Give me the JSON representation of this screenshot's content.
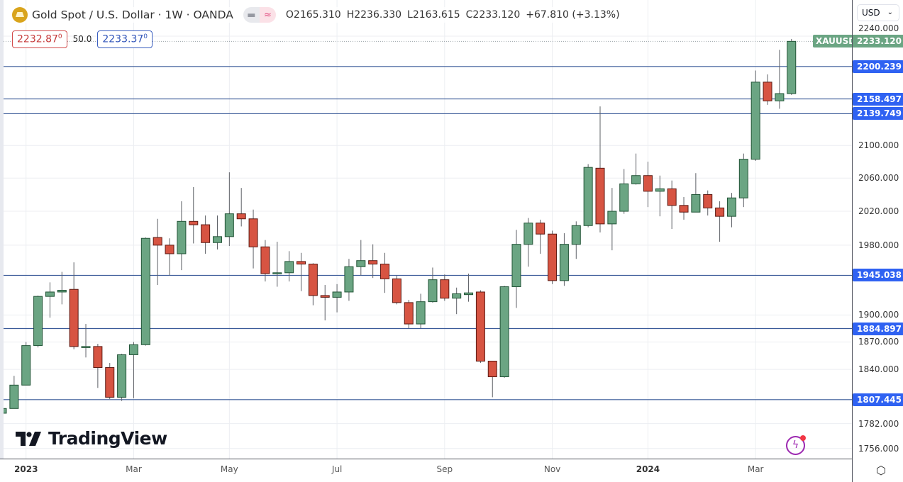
{
  "header": {
    "title": "Gold Spot / U.S. Dollar · 1W · OANDA",
    "ohlc": {
      "open": "O2165.310",
      "high": "H2236.330",
      "low": "L2163.615",
      "close": "C2233.120",
      "change": "+67.810 (+3.13%)"
    },
    "bid": "2232.87",
    "bid_sup": "0",
    "spread": "50.0",
    "ask": "2233.37",
    "ask_sup": "0"
  },
  "currency_select": "USD",
  "symbol_tag": "XAUUSD",
  "last_price_label": "2233.120",
  "branding": "TradingView",
  "colors": {
    "up": "#6ba583",
    "down": "#d75442",
    "level": "#2f62f2",
    "level_line": "#3a5a98"
  },
  "chart_data": {
    "type": "candlestick",
    "title": "Gold Spot / U.S. Dollar · 1W · OANDA",
    "y_scale": "log",
    "ylim": [
      1740,
      2250
    ],
    "last_price": 2233.12,
    "y_ticks": [
      "2240.000",
      "2100.000",
      "2060.000",
      "2020.000",
      "1980.000",
      "1900.000",
      "1870.000",
      "1840.000",
      "1782.000",
      "1756.000"
    ],
    "levels": [
      "2200.239",
      "2158.497",
      "2139.749",
      "1945.038",
      "1884.897",
      "1807.445"
    ],
    "x_labels": [
      {
        "label": "2023",
        "index": 2,
        "year": true
      },
      {
        "label": "Mar",
        "index": 11
      },
      {
        "label": "May",
        "index": 19
      },
      {
        "label": "Jul",
        "index": 28
      },
      {
        "label": "Sep",
        "index": 37
      },
      {
        "label": "Nov",
        "index": 46
      },
      {
        "label": "2024",
        "index": 54,
        "year": true
      },
      {
        "label": "Mar",
        "index": 63
      }
    ],
    "candles_ohlc": [
      [
        1793,
        1826,
        1784,
        1798
      ],
      [
        1798,
        1833,
        1798,
        1823
      ],
      [
        1823,
        1870,
        1823,
        1866
      ],
      [
        1866,
        1922,
        1864,
        1921
      ],
      [
        1921,
        1937,
        1897,
        1926
      ],
      [
        1926,
        1949,
        1912,
        1928
      ],
      [
        1929,
        1960,
        1862,
        1865
      ],
      [
        1865,
        1890,
        1853,
        1865
      ],
      [
        1865,
        1868,
        1820,
        1842
      ],
      [
        1842,
        1847,
        1808,
        1810
      ],
      [
        1810,
        1857,
        1806,
        1856
      ],
      [
        1856,
        1870,
        1809,
        1867
      ],
      [
        1867,
        1989,
        1866,
        1988
      ],
      [
        1989,
        2011,
        1934,
        1980
      ],
      [
        1980,
        1988,
        1945,
        1970
      ],
      [
        1970,
        2032,
        1951,
        2008
      ],
      [
        2008,
        2049,
        1982,
        2004
      ],
      [
        2004,
        2015,
        1970,
        1983
      ],
      [
        1983,
        2015,
        1975,
        1990
      ],
      [
        1990,
        2067,
        1979,
        2017
      ],
      [
        2017,
        2048,
        2002,
        2011
      ],
      [
        2011,
        2022,
        1953,
        1978
      ],
      [
        1978,
        1986,
        1938,
        1947
      ],
      [
        1947,
        1984,
        1932,
        1948
      ],
      [
        1948,
        1973,
        1938,
        1961
      ],
      [
        1961,
        1971,
        1927,
        1958
      ],
      [
        1958,
        1959,
        1911,
        1922
      ],
      [
        1922,
        1934,
        1894,
        1920
      ],
      [
        1920,
        1935,
        1903,
        1926
      ],
      [
        1926,
        1964,
        1916,
        1955
      ],
      [
        1955,
        1986,
        1945,
        1962
      ],
      [
        1962,
        1981,
        1942,
        1958
      ],
      [
        1958,
        1971,
        1925,
        1941
      ],
      [
        1941,
        1945,
        1912,
        1914
      ],
      [
        1914,
        1917,
        1885,
        1890
      ],
      [
        1890,
        1924,
        1885,
        1915
      ],
      [
        1915,
        1954,
        1914,
        1940
      ],
      [
        1940,
        1946,
        1916,
        1919
      ],
      [
        1919,
        1931,
        1901,
        1924
      ],
      [
        1923,
        1947,
        1915,
        1925
      ],
      [
        1926,
        1928,
        1847,
        1849
      ],
      [
        1849,
        1849,
        1810,
        1832
      ],
      [
        1832,
        1933,
        1831,
        1932
      ],
      [
        1932,
        1998,
        1908,
        1981
      ],
      [
        1981,
        2012,
        1955,
        2006
      ],
      [
        2006,
        2010,
        1970,
        1993
      ],
      [
        1993,
        1997,
        1935,
        1939
      ],
      [
        1939,
        1994,
        1933,
        1981
      ],
      [
        1981,
        2008,
        1964,
        2003
      ],
      [
        2003,
        2077,
        2001,
        2073
      ],
      [
        2072,
        2149,
        1995,
        2005
      ],
      [
        2005,
        2048,
        1974,
        2020
      ],
      [
        2020,
        2071,
        2017,
        2053
      ],
      [
        2053,
        2090,
        2052,
        2063
      ],
      [
        2063,
        2080,
        2025,
        2044
      ],
      [
        2044,
        2063,
        2014,
        2047
      ],
      [
        2047,
        2057,
        1999,
        2027
      ],
      [
        2027,
        2037,
        2010,
        2019
      ],
      [
        2019,
        2066,
        2019,
        2040
      ],
      [
        2040,
        2045,
        2015,
        2024
      ],
      [
        2024,
        2032,
        1984,
        2014
      ],
      [
        2014,
        2042,
        2001,
        2036
      ],
      [
        2036,
        2090,
        2025,
        2083
      ],
      [
        2083,
        2195,
        2081,
        2180
      ],
      [
        2180,
        2190,
        2151,
        2156
      ],
      [
        2156,
        2222,
        2146,
        2165.31
      ],
      [
        2165.31,
        2236.33,
        2163.615,
        2233.12
      ]
    ]
  }
}
